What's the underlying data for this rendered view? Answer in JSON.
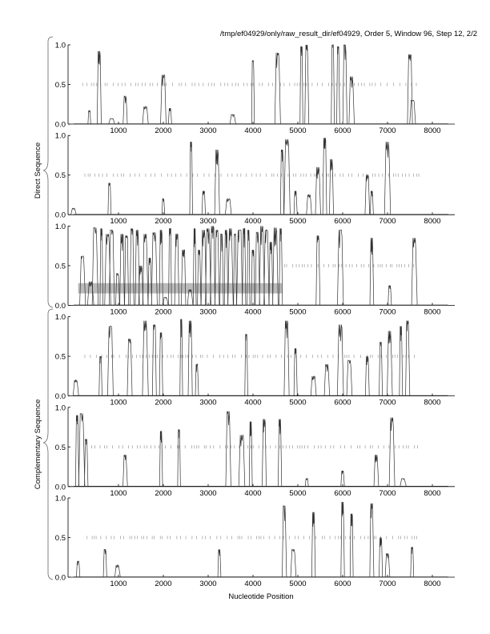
{
  "header": {
    "title": "/tmp/ef04929/only/raw_result_dir/ef04929, Order 5, Window 96, Step 12, 2/2"
  },
  "chart_data": {
    "type": "line",
    "title": "/tmp/ef04929/only/raw_result_dir/ef04929, Order 5, Window 96, Step 12, 2/2",
    "xlabel": "Nucleotide Position",
    "group_labels": [
      "Direct Sequence",
      "Complementary Sequence"
    ],
    "xlim": [
      -125,
      8500
    ],
    "ylim": [
      0,
      1
    ],
    "x_ticks": [
      1000,
      2000,
      3000,
      4000,
      5000,
      6000,
      7000,
      8000
    ],
    "y_ticks": [
      "0.0",
      "0.5",
      "1.0"
    ],
    "line_color": "#333333",
    "highlight_color": "#bbbbbb",
    "panels": [
      {
        "group": "Direct Sequence",
        "frame": 1,
        "marker_range": [
          200,
          7700
        ],
        "peaks": [
          [
            350,
            0.17
          ],
          [
            570,
            0.92
          ],
          [
            850,
            0.07
          ],
          [
            1150,
            0.35
          ],
          [
            1600,
            0.22
          ],
          [
            2000,
            0.62
          ],
          [
            2150,
            0.2
          ],
          [
            3550,
            0.12
          ],
          [
            4000,
            0.8
          ],
          [
            4550,
            0.9
          ],
          [
            5080,
            0.98
          ],
          [
            5200,
            1.0
          ],
          [
            5780,
            1.0
          ],
          [
            5900,
            0.98
          ],
          [
            6050,
            1.0
          ],
          [
            6200,
            0.6
          ],
          [
            7500,
            0.88
          ],
          [
            7560,
            0.3
          ]
        ]
      },
      {
        "group": "Direct Sequence",
        "frame": 2,
        "marker_range": [
          250,
          7700
        ],
        "peaks": [
          [
            0,
            0.08
          ],
          [
            800,
            0.4
          ],
          [
            2000,
            0.2
          ],
          [
            2620,
            0.92
          ],
          [
            2900,
            0.3
          ],
          [
            3200,
            0.82
          ],
          [
            3450,
            0.2
          ],
          [
            4650,
            0.82
          ],
          [
            4760,
            0.95
          ],
          [
            4950,
            0.3
          ],
          [
            5250,
            0.25
          ],
          [
            5450,
            0.6
          ],
          [
            5600,
            0.97
          ],
          [
            5750,
            0.7
          ],
          [
            6550,
            0.5
          ],
          [
            6650,
            0.3
          ],
          [
            7000,
            0.92
          ]
        ]
      },
      {
        "group": "Direct Sequence",
        "frame": 3,
        "marker_range": [
          4700,
          7700
        ],
        "highlight": {
          "x": [
            100,
            4650
          ],
          "y": [
            0.15,
            0.28
          ]
        },
        "peaks": [
          [
            200,
            0.62
          ],
          [
            380,
            0.3
          ],
          [
            480,
            0.98
          ],
          [
            620,
            0.97
          ],
          [
            760,
            0.9
          ],
          [
            850,
            0.95
          ],
          [
            980,
            0.4
          ],
          [
            1080,
            0.9
          ],
          [
            1180,
            0.88
          ],
          [
            1300,
            0.97
          ],
          [
            1420,
            0.95
          ],
          [
            1500,
            0.5
          ],
          [
            1600,
            0.9
          ],
          [
            1700,
            0.6
          ],
          [
            1800,
            0.92
          ],
          [
            1950,
            0.95
          ],
          [
            2050,
            0.1
          ],
          [
            2150,
            0.97
          ],
          [
            2300,
            0.9
          ],
          [
            2450,
            0.7
          ],
          [
            2600,
            0.2
          ],
          [
            2700,
            0.97
          ],
          [
            2800,
            0.7
          ],
          [
            2900,
            0.95
          ],
          [
            3000,
            0.97
          ],
          [
            3100,
            1.0
          ],
          [
            3200,
            0.95
          ],
          [
            3300,
            0.9
          ],
          [
            3400,
            0.95
          ],
          [
            3500,
            0.97
          ],
          [
            3600,
            0.9
          ],
          [
            3700,
            0.95
          ],
          [
            3800,
            0.97
          ],
          [
            3900,
            0.95
          ],
          [
            4000,
            0.7
          ],
          [
            4100,
            0.92
          ],
          [
            4200,
            1.0
          ],
          [
            4300,
            0.95
          ],
          [
            4400,
            0.8
          ],
          [
            4500,
            0.98
          ],
          [
            4620,
            0.97
          ],
          [
            5450,
            0.88
          ],
          [
            5950,
            0.95
          ],
          [
            6650,
            0.85
          ],
          [
            7050,
            0.25
          ],
          [
            7600,
            0.85
          ]
        ]
      },
      {
        "group": "Complementary Sequence",
        "frame": 1,
        "marker_range": [
          250,
          7700
        ],
        "peaks": [
          [
            50,
            0.2
          ],
          [
            600,
            0.5
          ],
          [
            820,
            0.88
          ],
          [
            1250,
            0.72
          ],
          [
            1600,
            0.95
          ],
          [
            1800,
            0.9
          ],
          [
            1950,
            0.8
          ],
          [
            2400,
            0.97
          ],
          [
            2600,
            0.95
          ],
          [
            2750,
            0.4
          ],
          [
            3850,
            0.78
          ],
          [
            4750,
            0.95
          ],
          [
            4950,
            0.6
          ],
          [
            5350,
            0.25
          ],
          [
            5650,
            0.4
          ],
          [
            5950,
            0.9
          ],
          [
            6150,
            0.45
          ],
          [
            6550,
            0.5
          ],
          [
            6850,
            0.68
          ],
          [
            7050,
            0.82
          ],
          [
            7300,
            0.88
          ],
          [
            7450,
            0.95
          ]
        ]
      },
      {
        "group": "Complementary Sequence",
        "frame": 2,
        "marker_range": [
          400,
          7700
        ],
        "peaks": [
          [
            80,
            0.9
          ],
          [
            180,
            0.92
          ],
          [
            280,
            0.6
          ],
          [
            1150,
            0.4
          ],
          [
            1950,
            0.7
          ],
          [
            2350,
            0.72
          ],
          [
            3450,
            0.95
          ],
          [
            3750,
            0.65
          ],
          [
            3950,
            0.82
          ],
          [
            4250,
            0.85
          ],
          [
            4600,
            0.85
          ],
          [
            5200,
            0.1
          ],
          [
            6000,
            0.2
          ],
          [
            6750,
            0.4
          ],
          [
            7100,
            0.87
          ],
          [
            7350,
            0.1
          ]
        ]
      },
      {
        "group": "Complementary Sequence",
        "frame": 3,
        "marker_range": [
          300,
          7700
        ],
        "peaks": [
          [
            100,
            0.2
          ],
          [
            700,
            0.35
          ],
          [
            980,
            0.15
          ],
          [
            3250,
            0.35
          ],
          [
            4700,
            0.9
          ],
          [
            4900,
            0.35
          ],
          [
            5350,
            0.82
          ],
          [
            6000,
            0.95
          ],
          [
            6200,
            0.8
          ],
          [
            6650,
            0.93
          ],
          [
            6850,
            0.5
          ],
          [
            7000,
            0.3
          ],
          [
            7550,
            0.38
          ]
        ]
      }
    ]
  }
}
